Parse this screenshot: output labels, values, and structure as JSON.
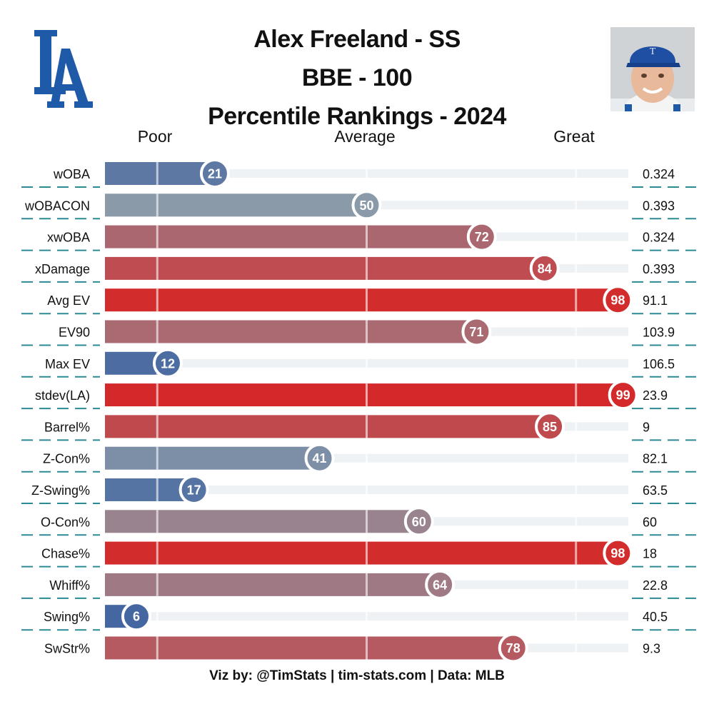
{
  "header": {
    "title_lines": [
      "Alex Freeland - SS",
      "BBE - 100",
      "Percentile Rankings - 2024"
    ],
    "logo_icon": "la-dodgers-logo-icon",
    "photo_icon": "player-headshot-icon"
  },
  "scale": {
    "poor": "Poor",
    "average": "Average",
    "great": "Great",
    "colors": {
      "poor": "#3a5fa0",
      "average": "#8a9aa8",
      "great": "#d62728"
    }
  },
  "chart_data": {
    "type": "bar",
    "orientation": "horizontal",
    "xlim": [
      0,
      100
    ],
    "reference_lines": [
      10,
      50,
      90
    ],
    "categories": [
      "wOBA",
      "wOBACON",
      "xwOBA",
      "xDamage",
      "Avg EV",
      "EV90",
      "Max EV",
      "stdev(LA)",
      "Barrel%",
      "Z-Con%",
      "Z-Swing%",
      "O-Con%",
      "Chase%",
      "Whiff%",
      "Swing%",
      "SwStr%"
    ],
    "values": [
      21,
      50,
      72,
      84,
      98,
      71,
      12,
      99,
      85,
      41,
      17,
      60,
      98,
      64,
      6,
      78
    ],
    "stat_values": [
      "0.324",
      "0.393",
      "0.324",
      "0.393",
      "91.1",
      "103.9",
      "106.5",
      "23.9",
      "9",
      "82.1",
      "63.5",
      "60",
      "18",
      "22.8",
      "40.5",
      "9.3"
    ]
  },
  "footer": {
    "credit": "Viz by: @TimStats | tim-stats.com | Data: MLB"
  }
}
